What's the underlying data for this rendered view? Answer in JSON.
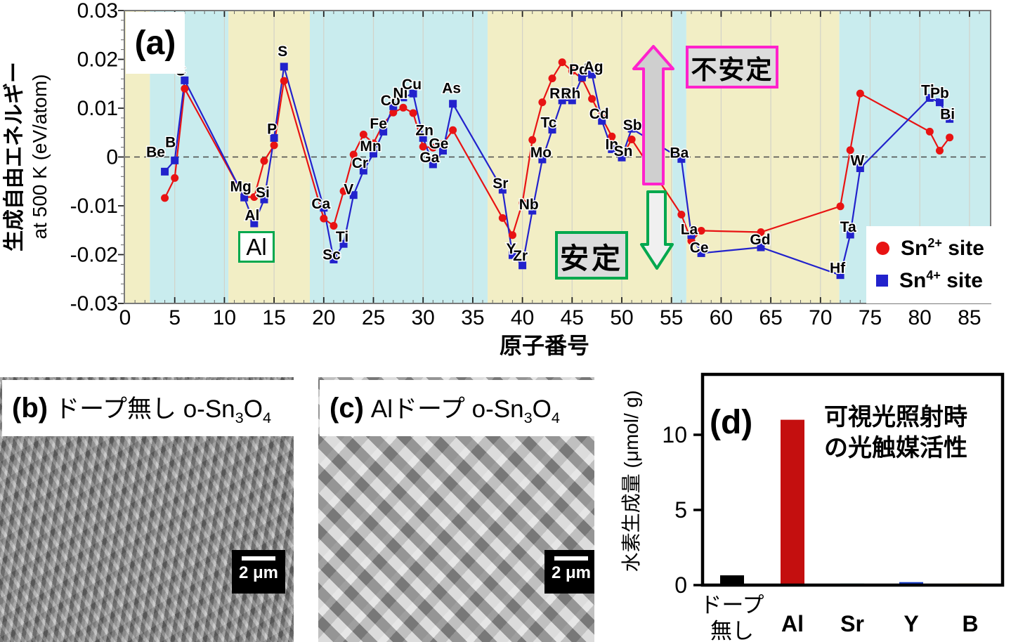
{
  "figure": {
    "panel_a": {
      "label": "(a)",
      "x_title": "原子番号",
      "y_title_1": "生成自由エネルギー",
      "y_title_2": "at 500 K (eV/atom)",
      "x_ticks": [
        "0",
        "5",
        "10",
        "15",
        "20",
        "25",
        "30",
        "35",
        "40",
        "45",
        "50",
        "55",
        "60",
        "65",
        "70",
        "75",
        "80",
        "85"
      ],
      "y_ticks": [
        "0.03",
        "0.02",
        "0.01",
        "0",
        "-0.01",
        "-0.02",
        "-0.03"
      ],
      "annotations": {
        "unstable": "不安定",
        "stable": "安定",
        "al_highlight": "Al"
      },
      "legend": [
        {
          "marker": "red-circle-icon",
          "pre": "Sn",
          "sup": "2+",
          "post": " site"
        },
        {
          "marker": "blue-square-icon",
          "pre": "Sn",
          "sup": "4+",
          "post": " site"
        }
      ],
      "colors": {
        "sn2": "#e81313",
        "sn4": "#2222cc",
        "band_yellow": "#f2eec5",
        "band_cyan": "#c9ecee",
        "magenta": "#ff22cc",
        "green": "#00a84e",
        "arrow_up_fill": "#cfcfcf",
        "arrow_down_fill": "#f0f0f0"
      }
    },
    "panel_b": {
      "label": "(b)",
      "title_main": "ドープ無し o-Sn",
      "sub1": "3",
      "mid": "O",
      "sub2": "4",
      "scale_bar": "2 μm"
    },
    "panel_c": {
      "label": "(c)",
      "title_main": "Alドープ o-Sn",
      "sub1": "3",
      "mid": "O",
      "sub2": "4",
      "scale_bar": "2 μm"
    },
    "panel_d": {
      "label": "(d)",
      "annotation_line1": "可視光照射時",
      "annotation_line2": "の光触媒活性",
      "y_title": "水素生成量 (μmol/ g)",
      "y_ticks": [
        "0",
        "5",
        "10"
      ],
      "category_lines": [
        [
          "ドープ",
          "無し"
        ],
        [
          "Al"
        ],
        [
          "Sr"
        ],
        [
          "Y"
        ],
        [
          "B"
        ]
      ]
    }
  },
  "chart_data": [
    {
      "id": "a",
      "type": "line",
      "title": "",
      "xlabel": "原子番号",
      "ylabel": "生成自由エネルギー at 500 K (eV/atom)",
      "xlim": [
        0,
        87
      ],
      "ylim": [
        -0.03,
        0.03
      ],
      "grid": "vertical every 5",
      "legend_position": "lower right",
      "series_names": [
        "Sn2+ site",
        "Sn4+ site"
      ],
      "zero_line": "dashed",
      "bands": [
        {
          "from": 0,
          "to": 2.5,
          "color": "yellow"
        },
        {
          "from": 2.5,
          "to": 10.4,
          "color": "cyan"
        },
        {
          "from": 10.4,
          "to": 18.6,
          "color": "yellow"
        },
        {
          "from": 18.6,
          "to": 36.5,
          "color": "cyan"
        },
        {
          "from": 36.5,
          "to": 55.1,
          "color": "yellow"
        },
        {
          "from": 55.1,
          "to": 56.5,
          "color": "cyan"
        },
        {
          "from": 56.5,
          "to": 71.9,
          "color": "yellow"
        },
        {
          "from": 71.9,
          "to": 87.2,
          "color": "cyan"
        }
      ],
      "points": [
        {
          "el": "Be",
          "z": 4,
          "sn2": -0.0084,
          "sn4": -0.003,
          "lbl": [
            "u",
            -13,
            -29
          ]
        },
        {
          "el": "B",
          "z": 5,
          "sn2": -0.0043,
          "sn4": -0.0007,
          "lbl": [
            "u",
            -6,
            -27
          ]
        },
        {
          "el": "C",
          "z": 6,
          "sn2": 0.014,
          "sn4": 0.0157,
          "lbl": [
            "u",
            -6,
            -15
          ]
        },
        {
          "el": "Mg",
          "z": 12,
          "sn2": -0.0082,
          "sn4": -0.0083,
          "lbl": [
            "u",
            -5,
            -16
          ]
        },
        {
          "el": "Al",
          "z": 13,
          "sn2": -0.0082,
          "sn4": -0.0136,
          "lbl": [
            "u",
            -3,
            25
          ]
        },
        {
          "el": "Si",
          "z": 14,
          "sn2": -0.0008,
          "sn4": -0.0087,
          "lbl": [
            "u",
            -2,
            44
          ]
        },
        {
          "el": "P",
          "z": 15,
          "sn2": 0.0024,
          "sn4": 0.0039,
          "lbl": [
            "u",
            -3,
            -14
          ]
        },
        {
          "el": "S",
          "z": 16,
          "sn2": 0.0156,
          "sn4": 0.0185,
          "lbl": [
            "u",
            -2,
            -23
          ]
        },
        {
          "el": "Ca",
          "z": 20,
          "sn2": -0.0126,
          "sn4": -0.0104,
          "lbl": [
            "u",
            -4,
            -7
          ]
        },
        {
          "el": "Sc",
          "z": 21,
          "sn2": -0.0141,
          "sn4": -0.021,
          "lbl": [
            "b",
            -3,
            -8
          ]
        },
        {
          "el": "Ti",
          "z": 22,
          "sn2": -0.007,
          "sn4": -0.0178,
          "lbl": [
            "b",
            -2,
            -11
          ]
        },
        {
          "el": "V",
          "z": 23,
          "sn2": 0.0005,
          "sn4": -0.0078,
          "lbl": [
            "b",
            -7,
            -9
          ]
        },
        {
          "el": "Cr",
          "z": 24,
          "sn2": 0.0046,
          "sn4": -0.0028,
          "lbl": [
            "b",
            -5,
            -12
          ]
        },
        {
          "el": "Mn",
          "z": 25,
          "sn2": 0.0028,
          "sn4": 0.0007,
          "lbl": [
            "u",
            -4,
            3
          ]
        },
        {
          "el": "Fe",
          "z": 26,
          "sn2": 0.0068,
          "sn4": 0.0052,
          "lbl": [
            "u",
            -7,
            -1
          ]
        },
        {
          "el": "Co",
          "z": 27,
          "sn2": 0.0091,
          "sn4": 0.0104,
          "lbl": [
            "u",
            -4,
            -9
          ]
        },
        {
          "el": "Ni",
          "z": 28,
          "sn2": 0.0101,
          "sn4": 0.0122,
          "lbl": [
            "u",
            -4,
            -7
          ]
        },
        {
          "el": "Cu",
          "z": 29,
          "sn2": 0.009,
          "sn4": 0.013,
          "lbl": [
            "u",
            -2,
            -14
          ]
        },
        {
          "el": "Zn",
          "z": 30,
          "sn2": 0.0021,
          "sn4": 0.0039,
          "lbl": [
            "u",
            2,
            -12
          ]
        },
        {
          "el": "Ga",
          "z": 31,
          "sn2": 0.0019,
          "sn4": -0.0015,
          "lbl": [
            "b",
            -5,
            -11
          ]
        },
        {
          "el": "Ge",
          "z": 32,
          "sn2": 0.0027,
          "sn4": 0.0013,
          "lbl": [
            "u",
            -6,
            -1
          ]
        },
        {
          "el": "As",
          "z": 33,
          "sn2": 0.0055,
          "sn4": 0.0109,
          "lbl": [
            "u",
            -2,
            -23
          ]
        },
        {
          "el": "Sr",
          "z": 38,
          "sn2": -0.0125,
          "sn4": -0.0067,
          "lbl": [
            "u",
            -3,
            -10
          ]
        },
        {
          "el": "Y",
          "z": 39,
          "sn2": -0.016,
          "sn4": -0.0201,
          "lbl": [
            "b",
            -2,
            -10
          ]
        },
        {
          "el": "Zr",
          "z": 40,
          "sn2": -0.0094,
          "sn4": -0.0222,
          "lbl": [
            "b",
            -3,
            -15
          ]
        },
        {
          "el": "Nb",
          "z": 41,
          "sn2": 0.0035,
          "sn4": -0.011,
          "lbl": [
            "b",
            -5,
            -10
          ]
        },
        {
          "el": "Mo",
          "z": 42,
          "sn2": 0.0112,
          "sn4": -0.0005,
          "lbl": [
            "b",
            -2,
            -11
          ]
        },
        {
          "el": "Tc",
          "z": 43,
          "sn2": 0.0161,
          "sn4": 0.0056,
          "lbl": [
            "b",
            -5,
            -11
          ]
        },
        {
          "el": "Ru",
          "z": 44,
          "sn2": 0.0194,
          "sn4": 0.0116,
          "lbl": [
            "b",
            -4,
            -11
          ]
        },
        {
          "el": "Rh",
          "z": 45,
          "sn2": 0.0176,
          "sn4": 0.0116,
          "lbl": [
            "b",
            -2,
            -11
          ]
        },
        {
          "el": "Pd",
          "z": 46,
          "sn2": 0.0161,
          "sn4": 0.0163,
          "lbl": [
            "b",
            -5,
            -12
          ]
        },
        {
          "el": "Ag",
          "z": 47,
          "sn2": 0.0119,
          "sn4": 0.0169,
          "lbl": [
            "b",
            2,
            -12
          ]
        },
        {
          "el": "Cd",
          "z": 48,
          "sn2": 0.008,
          "sn4": 0.0074,
          "lbl": [
            "b",
            -4,
            -11
          ]
        },
        {
          "el": "In",
          "z": 49,
          "sn2": 0.0042,
          "sn4": 0.0016,
          "lbl": [
            "b",
            0,
            -8
          ]
        },
        {
          "el": "Sn",
          "z": 50,
          "sn2": 0.0,
          "sn4": -0.0001,
          "lbl": [
            "b",
            2,
            -10
          ]
        },
        {
          "el": "Sb",
          "z": 51,
          "sn2": 0.0036,
          "sn4": 0.0058,
          "lbl": [
            "b",
            1,
            -6
          ]
        },
        {
          "el": "Ba",
          "z": 56,
          "sn2": -0.0118,
          "sn4": -0.0004,
          "lbl": [
            "b",
            -3,
            -10
          ]
        },
        {
          "el": "La",
          "z": 57,
          "sn2": -0.0172,
          "sn4": -0.016,
          "lbl": [
            "b",
            -3,
            -9
          ]
        },
        {
          "el": "Ce",
          "z": 58,
          "sn2": -0.0151,
          "sn4": -0.0197,
          "lbl": [
            "b",
            -3,
            -9
          ]
        },
        {
          "el": "Gd",
          "z": 64,
          "sn2": -0.0154,
          "sn4": -0.0185,
          "lbl": [
            "b",
            -1,
            -12
          ]
        },
        {
          "el": "Hf",
          "z": 72,
          "sn2": -0.0101,
          "sn4": -0.0242,
          "lbl": [
            "b",
            -4,
            -11
          ]
        },
        {
          "el": "Ta",
          "z": 73,
          "sn2": 0.0014,
          "sn4": -0.0159,
          "lbl": [
            "b",
            -3,
            -12
          ]
        },
        {
          "el": "W",
          "z": 74,
          "sn2": 0.013,
          "sn4": -0.0023,
          "lbl": [
            "b",
            -4,
            -12
          ]
        },
        {
          "el": "Tl",
          "z": 81,
          "sn2": 0.0052,
          "sn4": 0.0121,
          "lbl": [
            "b",
            -3,
            -12
          ]
        },
        {
          "el": "Pb",
          "z": 82,
          "sn2": 0.0013,
          "sn4": 0.0112,
          "lbl": [
            "b",
            0,
            -14
          ]
        },
        {
          "el": "Bi",
          "z": 83,
          "sn2": 0.004,
          "sn4": 0.0078,
          "lbl": [
            "b",
            -3,
            -8
          ]
        }
      ]
    },
    {
      "id": "d",
      "type": "bar",
      "title": "可視光照射時の光触媒活性",
      "categories": [
        "ドープ無し",
        "Al",
        "Sr",
        "Y",
        "B"
      ],
      "values": [
        0.65,
        11.0,
        0.1,
        0.2,
        0.1
      ],
      "bar_colors": [
        "#000000",
        "#c40f0f",
        "#2fb3a0",
        "#1b41c8",
        "#e6c528"
      ],
      "xlabel": "",
      "ylabel": "水素生成量 (μmol/ g)",
      "ylim": [
        0,
        14
      ],
      "yticks": [
        0,
        5,
        10
      ],
      "grid": "off"
    }
  ]
}
